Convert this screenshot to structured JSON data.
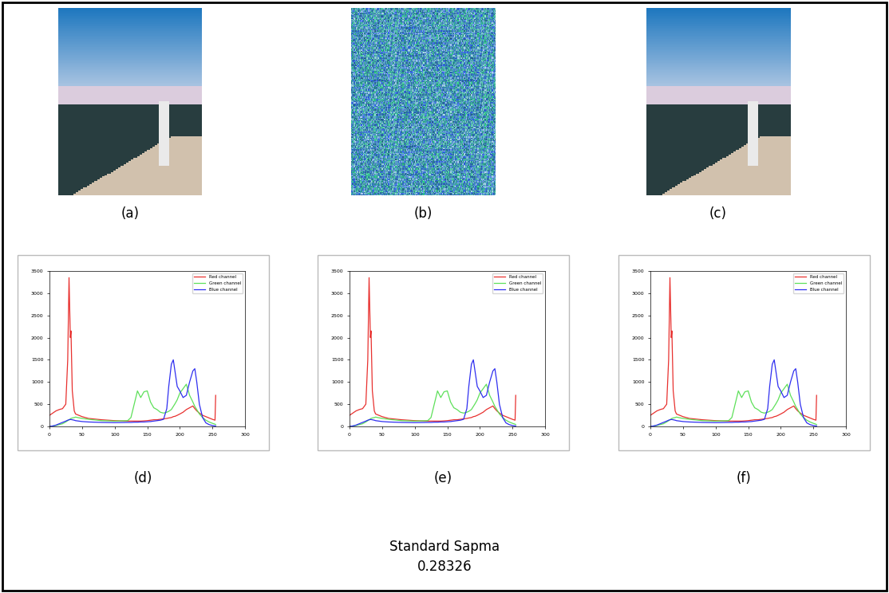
{
  "images": [
    "(a)",
    "(b)",
    "(c)"
  ],
  "footer": {
    "text": "Standard Sapma",
    "value": 0.28326
  },
  "chart_data": [
    {
      "type": "line",
      "caption": "(d)",
      "legend": "upper right",
      "xlim": [
        0,
        300
      ],
      "xticks": [
        0,
        50,
        100,
        150,
        200,
        250,
        300
      ],
      "ylim": [
        0,
        3500
      ],
      "yticks": [
        0,
        500,
        1000,
        1500,
        2000,
        2500,
        3000,
        3500
      ],
      "x": [
        0,
        5,
        10,
        15,
        20,
        25,
        28,
        30,
        32,
        33,
        35,
        38,
        40,
        50,
        60,
        80,
        100,
        120,
        125,
        130,
        135,
        140,
        145,
        150,
        155,
        160,
        165,
        170,
        175,
        180,
        183,
        187,
        190,
        193,
        196,
        200,
        205,
        210,
        215,
        220,
        223,
        226,
        230,
        235,
        240,
        245,
        250,
        254,
        255
      ],
      "series": [
        {
          "name": "Red channel",
          "color": "#e8312f",
          "values": [
            250,
            300,
            350,
            380,
            400,
            500,
            1500,
            3350,
            2000,
            2150,
            800,
            350,
            280,
            220,
            180,
            150,
            130,
            120,
            120,
            120,
            120,
            120,
            125,
            130,
            140,
            150,
            150,
            160,
            170,
            180,
            190,
            200,
            220,
            230,
            250,
            280,
            320,
            380,
            420,
            460,
            400,
            350,
            300,
            250,
            220,
            190,
            160,
            140,
            700
          ]
        },
        {
          "name": "Green channel",
          "color": "#5ee05a",
          "values": [
            0,
            10,
            20,
            40,
            60,
            100,
            130,
            150,
            170,
            180,
            190,
            200,
            210,
            180,
            160,
            130,
            120,
            130,
            200,
            500,
            800,
            650,
            780,
            800,
            550,
            420,
            380,
            320,
            300,
            320,
            340,
            380,
            450,
            520,
            600,
            750,
            850,
            950,
            700,
            550,
            450,
            380,
            280,
            200,
            140,
            100,
            70,
            50,
            40
          ]
        },
        {
          "name": "Blue channel",
          "color": "#2f2ff0",
          "values": [
            0,
            10,
            30,
            60,
            90,
            120,
            140,
            150,
            155,
            155,
            150,
            140,
            130,
            110,
            100,
            90,
            85,
            90,
            90,
            95,
            95,
            100,
            100,
            105,
            110,
            120,
            130,
            140,
            160,
            400,
            900,
            1400,
            1500,
            1200,
            900,
            800,
            650,
            700,
            1000,
            1250,
            1300,
            1000,
            500,
            200,
            80,
            40,
            20,
            10,
            10
          ]
        }
      ]
    },
    {
      "type": "line",
      "caption": "(e)",
      "legend": "upper right",
      "xlim": [
        0,
        300
      ],
      "xticks": [
        0,
        50,
        100,
        150,
        200,
        250,
        300
      ],
      "ylim": [
        0,
        3500
      ],
      "yticks": [
        0,
        500,
        1000,
        1500,
        2000,
        2500,
        3000,
        3500
      ],
      "x": [
        0,
        5,
        10,
        15,
        20,
        25,
        28,
        30,
        32,
        33,
        35,
        38,
        40,
        50,
        60,
        80,
        100,
        120,
        125,
        130,
        135,
        140,
        145,
        150,
        155,
        160,
        165,
        170,
        175,
        180,
        183,
        187,
        190,
        193,
        196,
        200,
        205,
        210,
        215,
        220,
        223,
        226,
        230,
        235,
        240,
        245,
        250,
        254,
        255
      ],
      "series": [
        {
          "name": "Red channel",
          "color": "#e8312f",
          "values": [
            250,
            300,
            350,
            380,
            400,
            500,
            1500,
            3350,
            2000,
            2150,
            800,
            350,
            280,
            220,
            180,
            150,
            130,
            120,
            120,
            120,
            120,
            120,
            125,
            130,
            140,
            150,
            150,
            160,
            170,
            180,
            190,
            200,
            220,
            230,
            250,
            280,
            320,
            380,
            420,
            460,
            400,
            350,
            300,
            250,
            220,
            190,
            160,
            140,
            700
          ]
        },
        {
          "name": "Green channel",
          "color": "#5ee05a",
          "values": [
            0,
            10,
            20,
            40,
            60,
            100,
            130,
            150,
            170,
            180,
            190,
            200,
            210,
            180,
            160,
            130,
            120,
            130,
            200,
            500,
            800,
            650,
            780,
            800,
            550,
            420,
            380,
            320,
            300,
            320,
            340,
            380,
            450,
            520,
            600,
            750,
            850,
            950,
            700,
            550,
            450,
            380,
            280,
            200,
            140,
            100,
            70,
            50,
            40
          ]
        },
        {
          "name": "Blue channel",
          "color": "#2f2ff0",
          "values": [
            0,
            10,
            30,
            60,
            90,
            120,
            140,
            150,
            155,
            155,
            150,
            140,
            130,
            110,
            100,
            90,
            85,
            90,
            90,
            95,
            95,
            100,
            100,
            105,
            110,
            120,
            130,
            140,
            160,
            400,
            900,
            1400,
            1500,
            1200,
            900,
            800,
            650,
            700,
            1000,
            1250,
            1300,
            1000,
            500,
            200,
            80,
            40,
            20,
            10,
            10
          ]
        }
      ]
    },
    {
      "type": "line",
      "caption": "(f)",
      "legend": "upper right",
      "xlim": [
        0,
        300
      ],
      "xticks": [
        0,
        50,
        100,
        150,
        200,
        250,
        300
      ],
      "ylim": [
        0,
        3500
      ],
      "yticks": [
        0,
        500,
        1000,
        1500,
        2000,
        2500,
        3000,
        3500
      ],
      "x": [
        0,
        5,
        10,
        15,
        20,
        25,
        28,
        30,
        32,
        33,
        35,
        38,
        40,
        50,
        60,
        80,
        100,
        120,
        125,
        130,
        135,
        140,
        145,
        150,
        155,
        160,
        165,
        170,
        175,
        180,
        183,
        187,
        190,
        193,
        196,
        200,
        205,
        210,
        215,
        220,
        223,
        226,
        230,
        235,
        240,
        245,
        250,
        254,
        255
      ],
      "series": [
        {
          "name": "Red channel",
          "color": "#e8312f",
          "values": [
            250,
            300,
            350,
            380,
            400,
            500,
            1500,
            3350,
            2000,
            2150,
            800,
            350,
            280,
            220,
            180,
            150,
            130,
            120,
            120,
            120,
            120,
            120,
            125,
            130,
            140,
            150,
            150,
            160,
            170,
            180,
            190,
            200,
            220,
            230,
            250,
            280,
            320,
            380,
            420,
            460,
            400,
            350,
            300,
            250,
            220,
            190,
            160,
            140,
            700
          ]
        },
        {
          "name": "Green channel",
          "color": "#5ee05a",
          "values": [
            0,
            10,
            20,
            40,
            60,
            100,
            130,
            150,
            170,
            180,
            190,
            200,
            210,
            180,
            160,
            130,
            120,
            130,
            200,
            500,
            800,
            650,
            780,
            800,
            550,
            420,
            380,
            320,
            300,
            320,
            340,
            380,
            450,
            520,
            600,
            750,
            850,
            950,
            700,
            550,
            450,
            380,
            280,
            200,
            140,
            100,
            70,
            50,
            40
          ]
        },
        {
          "name": "Blue channel",
          "color": "#2f2ff0",
          "values": [
            0,
            10,
            30,
            60,
            90,
            120,
            140,
            150,
            155,
            155,
            150,
            140,
            130,
            110,
            100,
            90,
            85,
            90,
            90,
            95,
            95,
            100,
            100,
            105,
            110,
            120,
            130,
            140,
            160,
            400,
            900,
            1400,
            1500,
            1200,
            900,
            800,
            650,
            700,
            1000,
            1250,
            1300,
            1000,
            500,
            200,
            80,
            40,
            20,
            10,
            10
          ]
        }
      ]
    }
  ]
}
